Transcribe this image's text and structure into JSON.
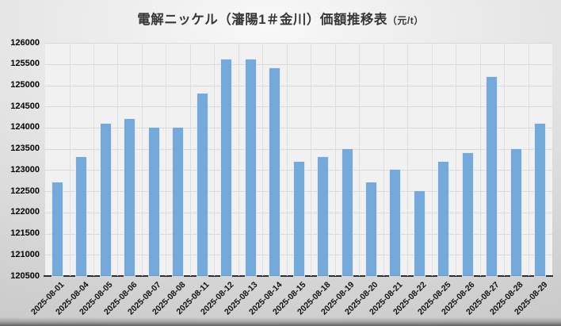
{
  "title": {
    "main": "電解ニッケル（瀋陽1＃金川）価額推移表",
    "unit": "（元/t）"
  },
  "chart_data": {
    "type": "bar",
    "title": "電解ニッケル（瀋陽1＃金川）価額推移表（元/t）",
    "xlabel": "",
    "ylabel": "",
    "categories": [
      "2025-08-01",
      "2025-08-04",
      "2025-08-05",
      "2025-08-06",
      "2025-08-07",
      "2025-08-08",
      "2025-08-11",
      "2025-08-12",
      "2025-08-13",
      "2025-08-14",
      "2025-08-15",
      "2025-08-18",
      "2025-08-19",
      "2025-08-20",
      "2025-08-21",
      "2025-08-22",
      "2025-08-25",
      "2025-08-26",
      "2025-08-27",
      "2025-08-28",
      "2025-08-29"
    ],
    "values": [
      122700,
      123300,
      124100,
      124200,
      124000,
      124000,
      124800,
      125600,
      125600,
      125400,
      123200,
      123300,
      123500,
      122700,
      123000,
      122500,
      123200,
      123400,
      125200,
      123500,
      124100
    ],
    "ylim": [
      120500,
      126000
    ],
    "yticks": [
      126000,
      125500,
      125000,
      124500,
      124000,
      123500,
      123000,
      122500,
      122000,
      121500,
      121000,
      120500
    ],
    "grid": true,
    "legend": false,
    "colors": {
      "bar": "#6CA4D7",
      "bar_border": "#DEEAF6",
      "plot_background": "#F1F1F1",
      "gridline": "#D9D9D9",
      "axis_line": "#2F2F2F",
      "title_text": "#373737",
      "tick_text": "#000000"
    }
  }
}
